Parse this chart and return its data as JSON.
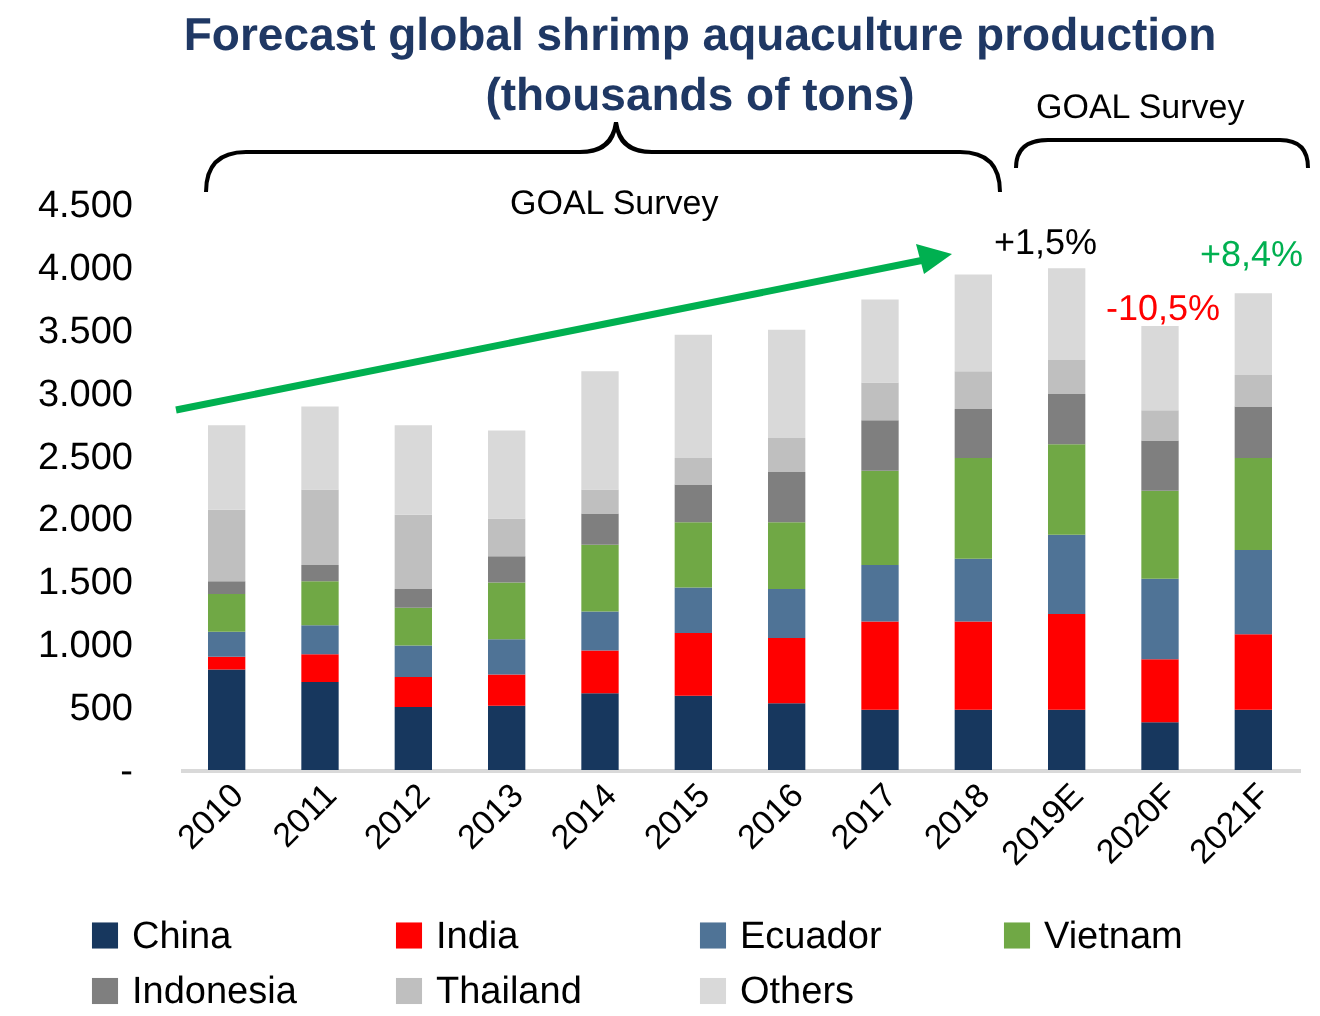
{
  "chart_data": {
    "type": "bar",
    "stacked": true,
    "title": [
      "Forecast global shrimp aquaculture production",
      "(thousands of tons)"
    ],
    "categories": [
      "2010",
      "2011",
      "2012",
      "2013",
      "2014",
      "2015",
      "2016",
      "2017",
      "2018",
      "2019E",
      "2020F",
      "2021F"
    ],
    "series": [
      {
        "name": "China",
        "color": "#17375e",
        "values": [
          800,
          700,
          500,
          510,
          610,
          590,
          530,
          480,
          480,
          480,
          380,
          480
        ]
      },
      {
        "name": "India",
        "color": "#ff0000",
        "values": [
          100,
          220,
          240,
          250,
          340,
          500,
          520,
          700,
          700,
          760,
          500,
          600
        ]
      },
      {
        "name": "Ecuador",
        "color": "#4f7396",
        "values": [
          200,
          230,
          250,
          280,
          310,
          360,
          390,
          450,
          500,
          630,
          640,
          670
        ]
      },
      {
        "name": "Vietnam",
        "color": "#70a845",
        "values": [
          300,
          350,
          300,
          450,
          530,
          520,
          530,
          750,
          800,
          720,
          700,
          730
        ]
      },
      {
        "name": "Indonesia",
        "color": "#7f7f7f",
        "values": [
          100,
          130,
          150,
          210,
          250,
          300,
          400,
          400,
          390,
          400,
          400,
          410
        ]
      },
      {
        "name": "Thailand",
        "color": "#bfbfbf",
        "values": [
          570,
          600,
          590,
          300,
          190,
          210,
          270,
          300,
          300,
          270,
          240,
          250
        ]
      },
      {
        "name": "Others",
        "color": "#d9d9d9",
        "values": [
          670,
          660,
          710,
          700,
          940,
          980,
          860,
          660,
          770,
          730,
          670,
          650
        ]
      }
    ],
    "ylim": [
      0,
      4500
    ],
    "yticks": [
      {
        "value": 0,
        "label": "-"
      },
      {
        "value": 500,
        "label": "500"
      },
      {
        "value": 1000,
        "label": "1.000"
      },
      {
        "value": 1500,
        "label": "1.500"
      },
      {
        "value": 2000,
        "label": "2.000"
      },
      {
        "value": 2500,
        "label": "2.500"
      },
      {
        "value": 3000,
        "label": "3.000"
      },
      {
        "value": 3500,
        "label": "3.500"
      },
      {
        "value": 4000,
        "label": "4.000"
      },
      {
        "value": 4500,
        "label": "4.500"
      }
    ],
    "grid": false,
    "legend": "bottom",
    "annotations": [
      "GOAL Survey",
      "GOAL Survey",
      "+1,5%",
      "-10,5%",
      "+8,4%"
    ]
  }
}
